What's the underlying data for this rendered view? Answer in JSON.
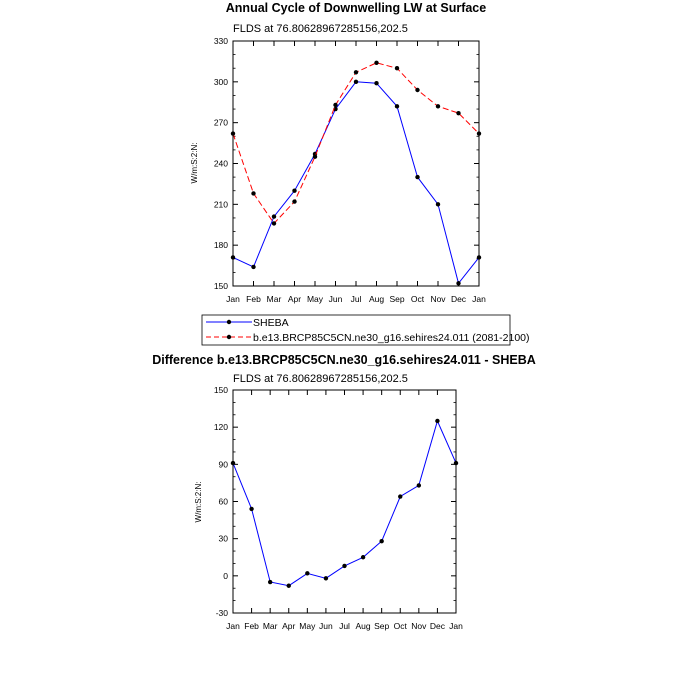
{
  "chart_data": [
    {
      "type": "line",
      "title": "Annual Cycle of Downwelling LW at Surface",
      "subtitle": "FLDS at 76.80628967285156,202.5",
      "ylabel": "W/m:S:2:N:",
      "xlabel": "",
      "ylim": [
        150,
        330
      ],
      "yticks": [
        150,
        180,
        210,
        240,
        270,
        300,
        330
      ],
      "categories": [
        "Jan",
        "Feb",
        "Mar",
        "Apr",
        "May",
        "Jun",
        "Jul",
        "Aug",
        "Sep",
        "Oct",
        "Nov",
        "Dec",
        "Jan"
      ],
      "series": [
        {
          "name": "SHEBA",
          "color": "#0000ff",
          "dashed": false,
          "values": [
            171,
            164,
            201,
            220,
            247,
            280,
            300,
            299,
            282,
            230,
            210,
            152,
            171
          ]
        },
        {
          "name": "b.e13.BRCP85C5CN.ne30_g16.sehires24.011 (2081-2100)",
          "color": "#ff0000",
          "dashed": true,
          "values": [
            262,
            218,
            196,
            212,
            245,
            283,
            307,
            314,
            310,
            294,
            282,
            277,
            262
          ]
        }
      ]
    },
    {
      "type": "line",
      "title": "Difference b.e13.BRCP85C5CN.ne30_g16.sehires24.011 - SHEBA",
      "subtitle": "FLDS at 76.80628967285156,202.5",
      "ylabel": "W/m:S:2:N:",
      "xlabel": "",
      "ylim": [
        -30,
        150
      ],
      "yticks": [
        -30,
        0,
        30,
        60,
        90,
        120,
        150
      ],
      "categories": [
        "Jan",
        "Feb",
        "Mar",
        "Apr",
        "May",
        "Jun",
        "Jul",
        "Aug",
        "Sep",
        "Oct",
        "Nov",
        "Dec",
        "Jan"
      ],
      "series": [
        {
          "color": "#0000ff",
          "dashed": false,
          "values": [
            91,
            54,
            -5,
            -8,
            2,
            -2,
            8,
            15,
            28,
            64,
            73,
            125,
            91
          ]
        }
      ]
    }
  ],
  "legend": {
    "items": [
      "SHEBA",
      "b.e13.BRCP85C5CN.ne30_g16.sehires24.011 (2081-2100)"
    ]
  }
}
